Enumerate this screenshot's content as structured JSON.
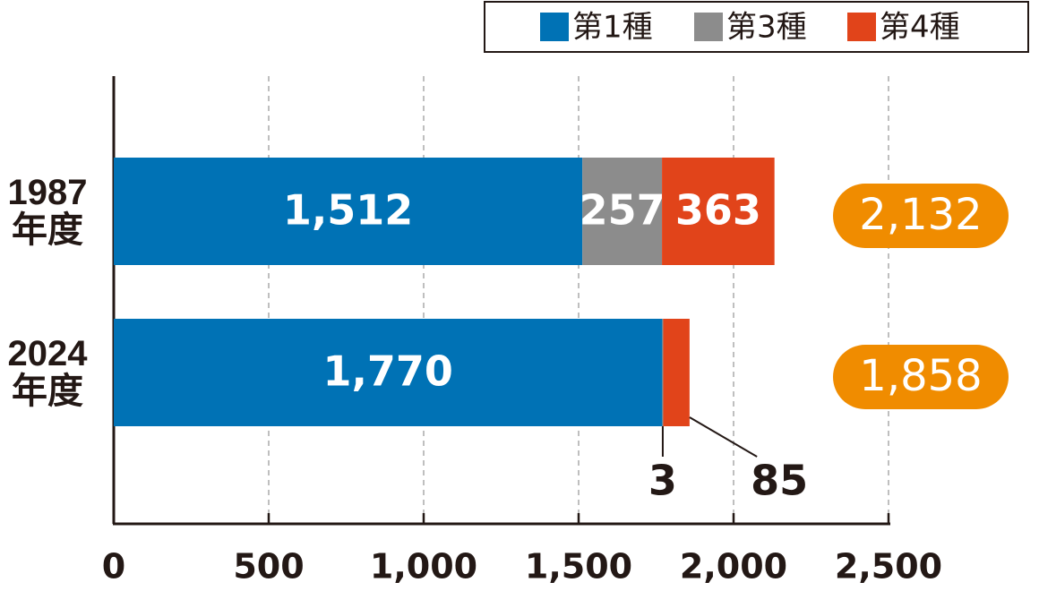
{
  "chart_data": {
    "type": "stacked-hbar",
    "categories": [
      "1987\n年度",
      "2024\n年度"
    ],
    "series": [
      {
        "name": "第1種",
        "color": "#0072b5",
        "values": [
          1512,
          1770
        ],
        "value_labels": [
          "1,512",
          "1,770"
        ]
      },
      {
        "name": "第3種",
        "color": "#8c8c8c",
        "values": [
          257,
          3
        ],
        "value_labels": [
          "257",
          "3"
        ]
      },
      {
        "name": "第4種",
        "color": "#e1441a",
        "values": [
          363,
          85
        ],
        "value_labels": [
          "363",
          "85"
        ]
      }
    ],
    "totals": {
      "color": "#f08c00",
      "values": [
        2132,
        1858
      ],
      "value_labels": [
        "2,132",
        "1,858"
      ]
    },
    "xlim": [
      0,
      2500
    ],
    "xticks": [
      0,
      500,
      {
        "value": 1000,
        "label": "1,000"
      },
      {
        "value": 1500,
        "label": "1,500"
      },
      {
        "value": 2000,
        "label": "2,000"
      },
      {
        "value": 2500,
        "label": "2,500"
      }
    ],
    "grid": true,
    "legend": "top-right"
  }
}
